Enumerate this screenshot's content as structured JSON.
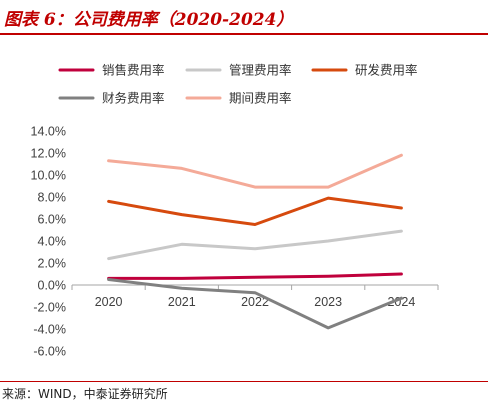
{
  "header": {
    "title": "图表 6：公司费用率（2020-2024）"
  },
  "footer": {
    "source": "来源：WIND，中泰证券研究所"
  },
  "chart_data": {
    "type": "line",
    "title": "图表 6：公司费用率（2020-2024）",
    "xlabel": "",
    "ylabel": "",
    "categories": [
      "2020",
      "2021",
      "2022",
      "2023",
      "2024"
    ],
    "y_ticks": [
      "14.0%",
      "12.0%",
      "10.0%",
      "8.0%",
      "6.0%",
      "4.0%",
      "2.0%",
      "0.0%",
      "-2.0%",
      "-4.0%",
      "-6.0%"
    ],
    "ylim": [
      -6,
      14
    ],
    "grid": false,
    "legend_position": "top",
    "series": [
      {
        "name": "销售费用率",
        "color": "#c0003c",
        "values": [
          0.6,
          0.6,
          0.7,
          0.8,
          1.0
        ]
      },
      {
        "name": "管理费用率",
        "color": "#c8c8c8",
        "values": [
          2.4,
          3.7,
          3.3,
          4.0,
          4.9
        ]
      },
      {
        "name": "研发费用率",
        "color": "#d64a0e",
        "values": [
          7.6,
          6.4,
          5.5,
          7.9,
          7.0
        ]
      },
      {
        "name": "财务费用率",
        "color": "#808080",
        "values": [
          0.5,
          -0.3,
          -0.7,
          -3.9,
          -1.2
        ]
      },
      {
        "name": "期间费用率",
        "color": "#f4aa98",
        "values": [
          11.3,
          10.6,
          8.9,
          8.9,
          11.8
        ]
      }
    ]
  }
}
